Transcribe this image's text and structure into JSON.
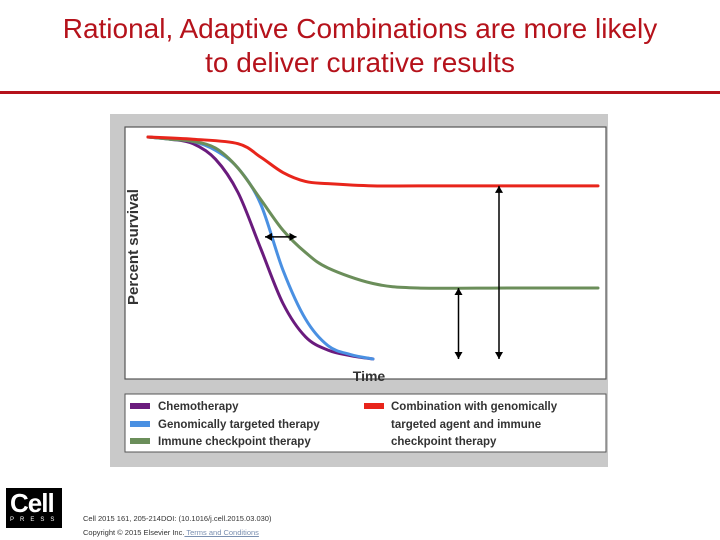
{
  "slide": {
    "title_line1": "Rational, Adaptive Combinations are more likely",
    "title_line2": "to deliver curative results",
    "citation": "Cell 2015 161, 205-214DOI: (10.1016/j.cell.2015.03.030)",
    "copyright_prefix": "Copyright © 2015 Elsevier Inc.",
    "copyright_link": " Terms and Conditions",
    "logo_word": "Cell",
    "logo_press": "PRESS"
  },
  "colors": {
    "title": "#b5121b",
    "chemotherapy": "#6a1b7d",
    "targeted": "#4a90e2",
    "immune": "#6b8e5a",
    "combination": "#e8251b"
  },
  "chart_data": {
    "type": "line",
    "xlabel": "Time",
    "ylabel": "Percent survival",
    "ylim": [
      0,
      100
    ],
    "grid": false,
    "legend_position": "bottom",
    "series": [
      {
        "name": "Chemotherapy",
        "color": "#6a1b7d",
        "x": [
          0,
          5,
          10,
          15,
          20,
          25,
          30,
          35,
          40,
          45,
          50
        ],
        "y": [
          100,
          99,
          97,
          90,
          75,
          50,
          25,
          10,
          4,
          1.5,
          0
        ]
      },
      {
        "name": "Genomically targeted therapy",
        "color": "#4a90e2",
        "x": [
          0,
          5,
          10,
          15,
          20,
          25,
          30,
          35,
          40,
          45,
          50
        ],
        "y": [
          100,
          99,
          98,
          94,
          86,
          70,
          40,
          18,
          6,
          2,
          0
        ]
      },
      {
        "name": "Immune checkpoint therapy",
        "color": "#6b8e5a",
        "x": [
          0,
          5,
          10,
          15,
          20,
          25,
          30,
          35,
          40,
          50,
          60,
          80,
          100
        ],
        "y": [
          100,
          99,
          98,
          95,
          86,
          72,
          58,
          48,
          41,
          34,
          32,
          32,
          32
        ]
      },
      {
        "name": "Combination with genomically targeted agent and immune checkpoint therapy",
        "color": "#e8251b",
        "x": [
          0,
          10,
          20,
          25,
          30,
          35,
          40,
          50,
          60,
          80,
          100
        ],
        "y": [
          100,
          99,
          97,
          91,
          84,
          80,
          79,
          78,
          78,
          78,
          78
        ]
      }
    ],
    "legend": [
      "Chemotherapy",
      "Genomically targeted therapy",
      "Immune checkpoint therapy",
      "Combination with genomically",
      "targeted agent and immune",
      "checkpoint therapy"
    ]
  }
}
